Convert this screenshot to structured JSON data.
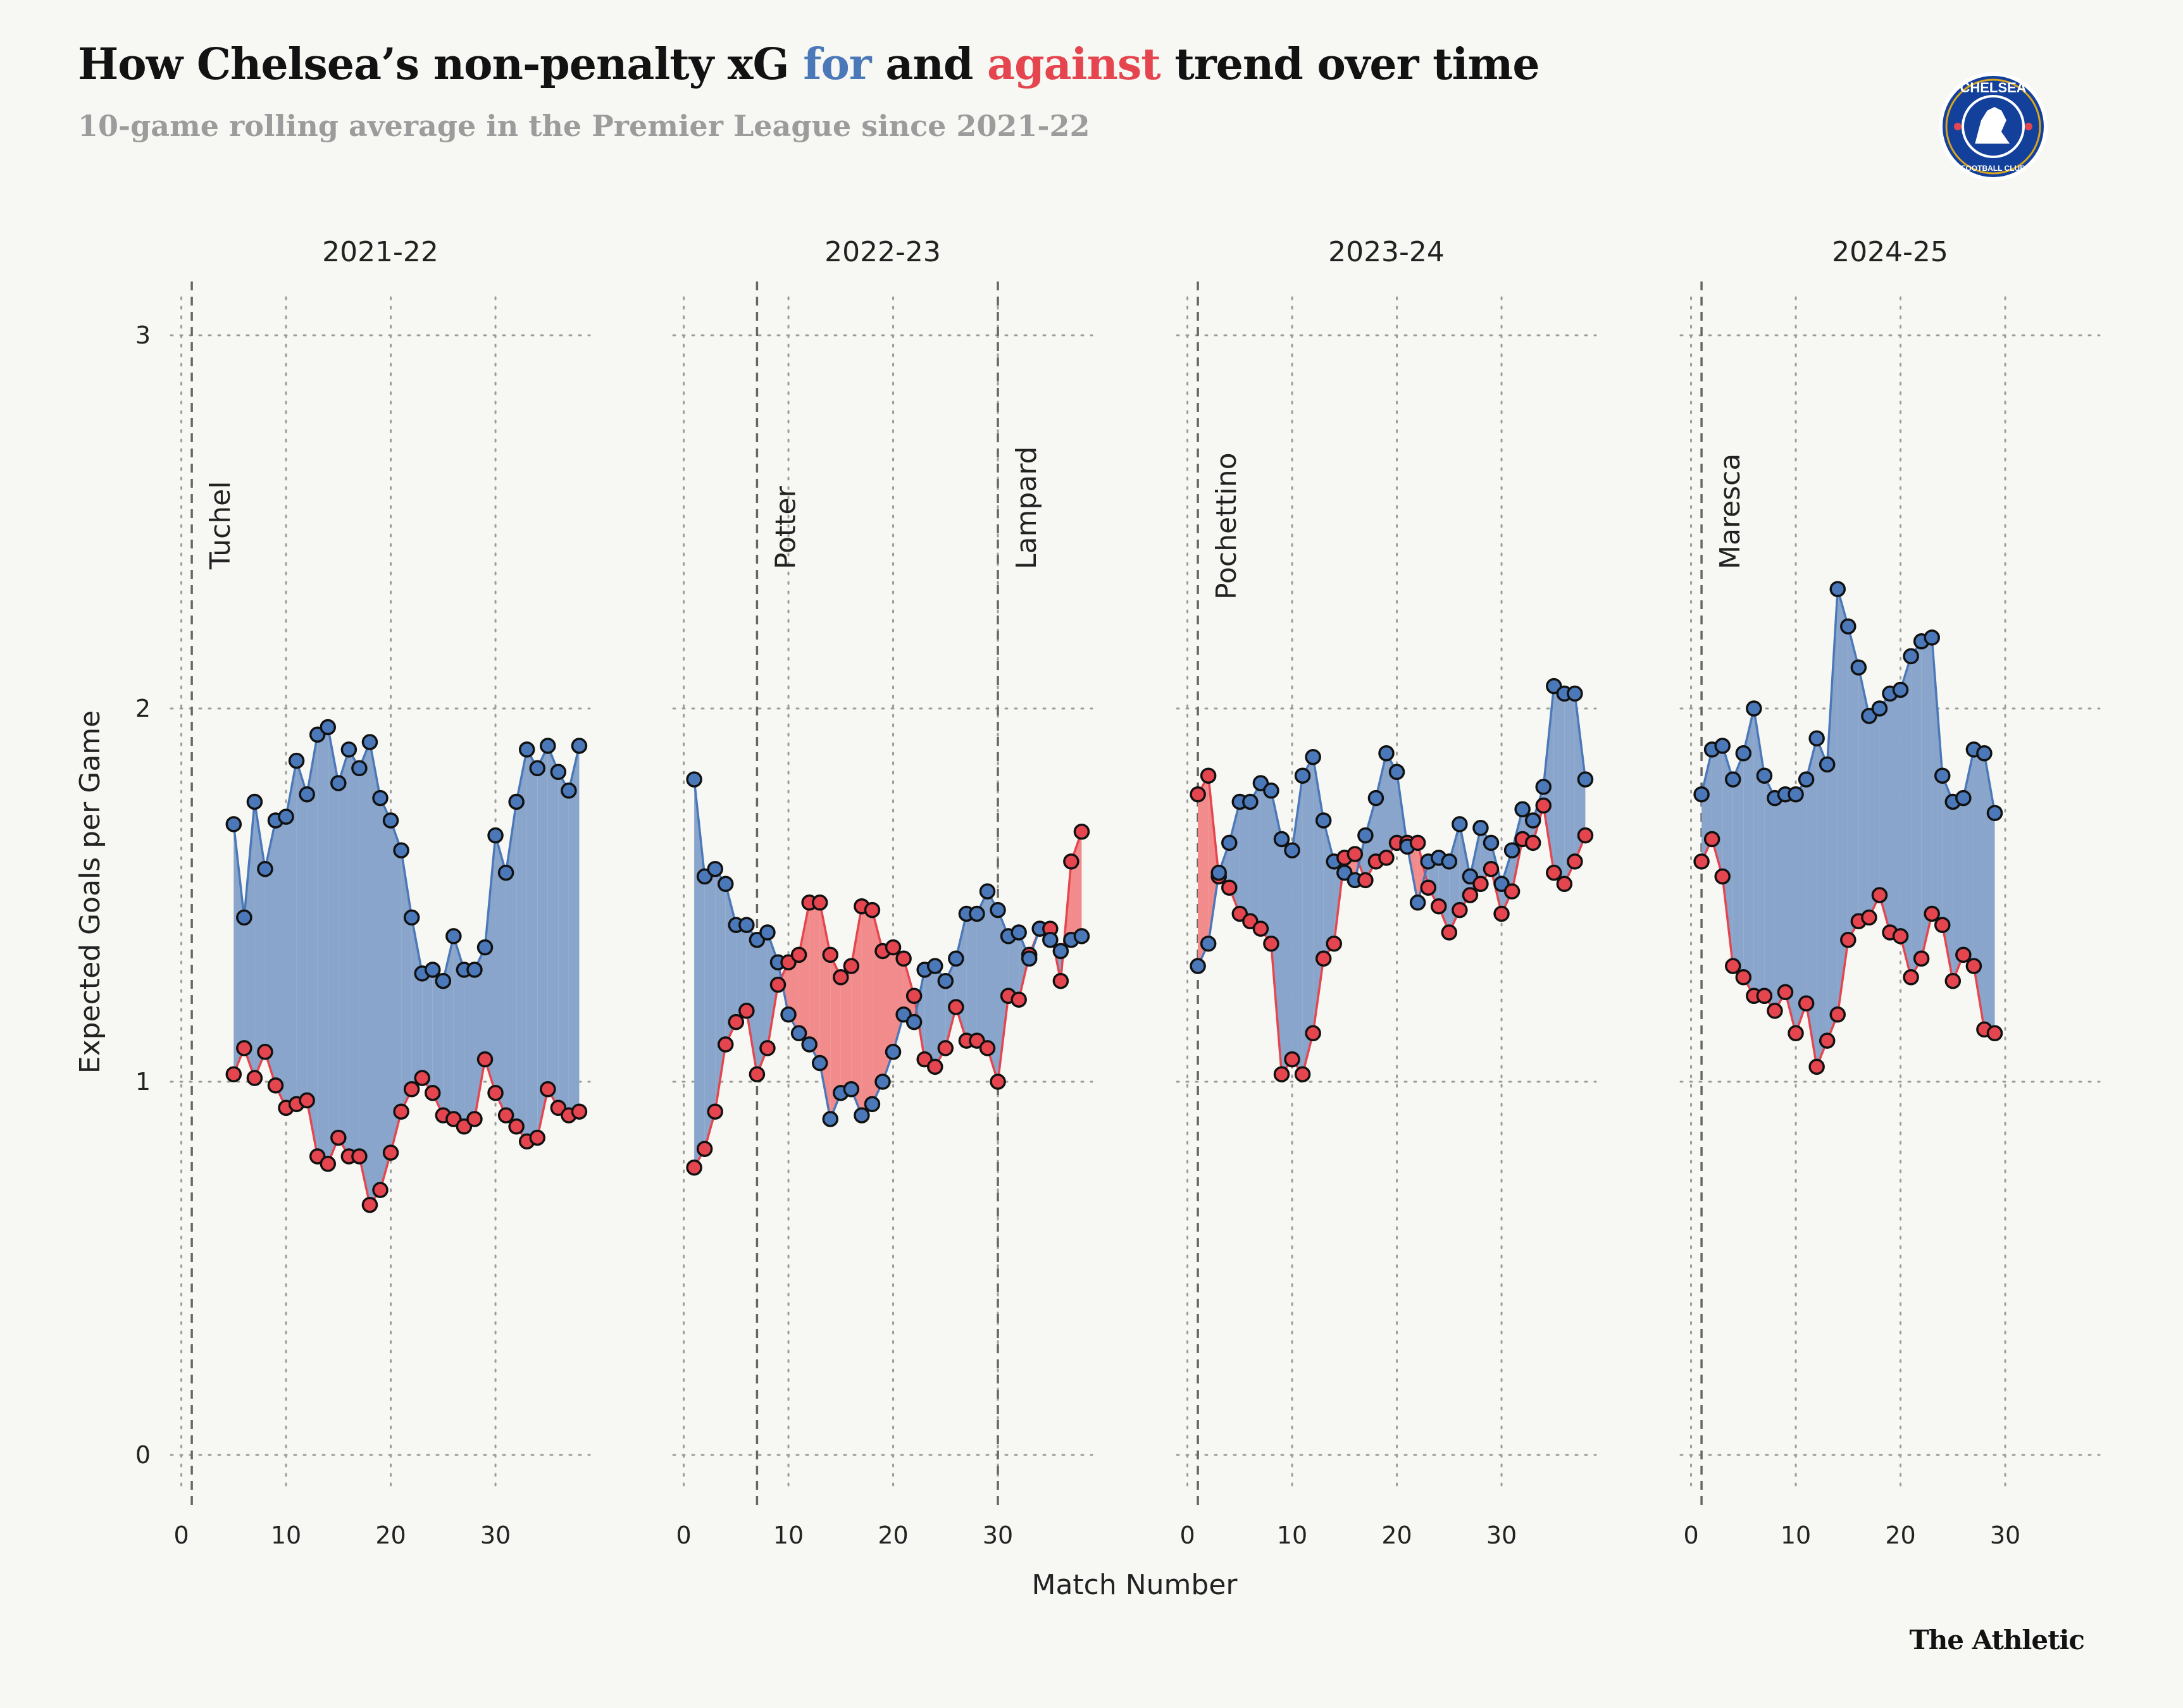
{
  "header": {
    "title_pre": "How Chelsea’s non-penalty xG ",
    "title_for": "for",
    "title_mid": " and ",
    "title_against": "against",
    "title_post": " trend over time",
    "subtitle": "10-game rolling average in the Premier League since 2021-22"
  },
  "logo": {
    "text": "CHELSEA",
    "subtext": "FOOTBALL CLUB"
  },
  "footer": {
    "brand": "The Athletic"
  },
  "colors": {
    "for": "#4a78b8",
    "against": "#e5454e",
    "for_fill": "#89a5cb",
    "against_fill": "#f28b8c"
  },
  "chart_data": {
    "type": "line",
    "title": "How Chelsea’s non-penalty xG for and against trend over time",
    "subtitle": "10-game rolling average in the Premier League since 2021-22",
    "xlabel": "Match Number",
    "ylabel": "Expected Goals per Game",
    "ylim": [
      -0.1,
      3.1
    ],
    "xlim": [
      -1,
      39
    ],
    "yticks": [
      0,
      1,
      2,
      3
    ],
    "xticks": [
      0,
      10,
      20,
      30
    ],
    "grid": true,
    "panels": [
      {
        "season": "2021-22",
        "start_match": 5,
        "managers": [
          {
            "name": "Tuchel",
            "match": 1
          }
        ],
        "series": [
          {
            "name": "for",
            "values": [
              1.69,
              1.44,
              1.75,
              1.57,
              1.7,
              1.71,
              1.86,
              1.77,
              1.93,
              1.95,
              1.8,
              1.89,
              1.84,
              1.91,
              1.76,
              1.7,
              1.62,
              1.44,
              1.29,
              1.3,
              1.27,
              1.39,
              1.3,
              1.3,
              1.36,
              1.66,
              1.56,
              1.75,
              1.89,
              1.84,
              1.9,
              1.83,
              1.78,
              1.9
            ]
          },
          {
            "name": "against",
            "values": [
              1.02,
              1.09,
              1.01,
              1.08,
              0.99,
              0.93,
              0.94,
              0.95,
              0.8,
              0.78,
              0.85,
              0.8,
              0.8,
              0.67,
              0.71,
              0.81,
              0.92,
              0.98,
              1.01,
              0.97,
              0.91,
              0.9,
              0.88,
              0.9,
              1.06,
              0.97,
              0.91,
              0.88,
              0.84,
              0.85,
              0.98,
              0.93,
              0.91,
              0.92
            ]
          }
        ]
      },
      {
        "season": "2022-23",
        "start_match": 1,
        "managers": [
          {
            "name": "Potter",
            "match": 7
          },
          {
            "name": "Lampard",
            "match": 30
          }
        ],
        "series": [
          {
            "name": "for",
            "values": [
              1.81,
              1.55,
              1.57,
              1.53,
              1.42,
              1.42,
              1.38,
              1.4,
              1.32,
              1.18,
              1.13,
              1.1,
              1.05,
              0.9,
              0.97,
              0.98,
              0.91,
              0.94,
              1.0,
              1.08,
              1.18,
              1.16,
              1.3,
              1.31,
              1.27,
              1.33,
              1.45,
              1.45,
              1.51,
              1.46,
              1.39,
              1.4,
              1.33,
              1.41,
              1.38,
              1.35,
              1.38,
              1.39
            ]
          },
          {
            "name": "against",
            "values": [
              0.77,
              0.82,
              0.92,
              1.1,
              1.16,
              1.19,
              1.02,
              1.09,
              1.26,
              1.32,
              1.34,
              1.48,
              1.48,
              1.34,
              1.28,
              1.31,
              1.47,
              1.46,
              1.35,
              1.36,
              1.33,
              1.23,
              1.06,
              1.04,
              1.09,
              1.2,
              1.11,
              1.11,
              1.09,
              1.0,
              1.23,
              1.22,
              1.34,
              1.41,
              1.41,
              1.27,
              1.59,
              1.67
            ]
          }
        ]
      },
      {
        "season": "2023-24",
        "start_match": 1,
        "managers": [
          {
            "name": "Pochettino",
            "match": 1
          }
        ],
        "series": [
          {
            "name": "for",
            "values": [
              1.31,
              1.37,
              1.56,
              1.64,
              1.75,
              1.75,
              1.8,
              1.78,
              1.65,
              1.62,
              1.82,
              1.87,
              1.7,
              1.59,
              1.56,
              1.54,
              1.66,
              1.76,
              1.88,
              1.83,
              1.63,
              1.48,
              1.59,
              1.6,
              1.59,
              1.69,
              1.55,
              1.68,
              1.64,
              1.53,
              1.62,
              1.73,
              1.7,
              1.79,
              2.06,
              2.04,
              2.04,
              1.81
            ]
          },
          {
            "name": "against",
            "values": [
              1.77,
              1.82,
              1.55,
              1.52,
              1.45,
              1.43,
              1.41,
              1.37,
              1.02,
              1.06,
              1.02,
              1.13,
              1.33,
              1.37,
              1.6,
              1.61,
              1.54,
              1.59,
              1.6,
              1.64,
              1.64,
              1.64,
              1.52,
              1.47,
              1.4,
              1.46,
              1.5,
              1.53,
              1.57,
              1.45,
              1.51,
              1.65,
              1.64,
              1.74,
              1.56,
              1.53,
              1.59,
              1.66
            ]
          }
        ]
      },
      {
        "season": "2024-25",
        "start_match": 1,
        "managers": [
          {
            "name": "Maresca",
            "match": 1
          }
        ],
        "series": [
          {
            "name": "for",
            "values": [
              1.77,
              1.89,
              1.9,
              1.81,
              1.88,
              2.0,
              1.82,
              1.76,
              1.77,
              1.77,
              1.81,
              1.92,
              1.85,
              2.32,
              2.22,
              2.11,
              1.98,
              2.0,
              2.04,
              2.05,
              2.14,
              2.18,
              2.19,
              1.82,
              1.75,
              1.76,
              1.89,
              1.88,
              1.72
            ]
          },
          {
            "name": "against",
            "values": [
              1.59,
              1.65,
              1.55,
              1.31,
              1.28,
              1.23,
              1.23,
              1.19,
              1.24,
              1.13,
              1.21,
              1.04,
              1.11,
              1.18,
              1.38,
              1.43,
              1.44,
              1.5,
              1.4,
              1.39,
              1.28,
              1.33,
              1.45,
              1.42,
              1.27,
              1.34,
              1.31,
              1.14,
              1.13
            ]
          }
        ]
      }
    ]
  }
}
